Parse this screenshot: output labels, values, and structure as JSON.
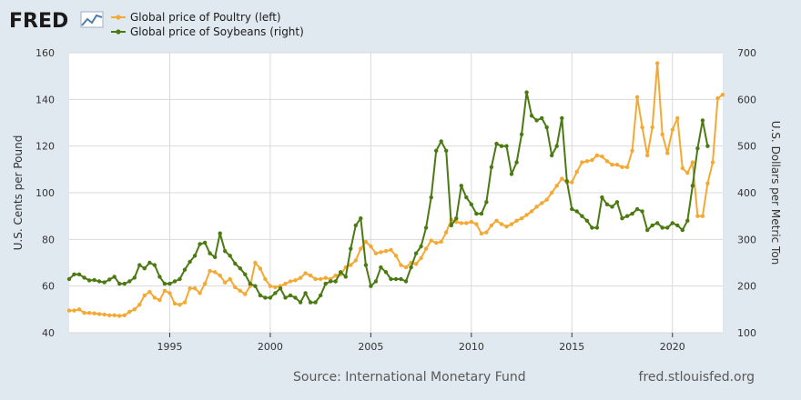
{
  "logo": {
    "text": "FRED"
  },
  "footer": {
    "source": "Source: International Monetary Fund",
    "site": "fred.stlouisfed.org"
  },
  "colors": {
    "background": "#e1e9f0",
    "plot_background": "#ffffff",
    "poultry": "#f4a935",
    "soybeans": "#4b7a12",
    "grid": "#d9d9d9"
  },
  "chart_data": {
    "type": "line",
    "title": "",
    "xlabel": "",
    "ylabel": "U.S. Cents per Pound",
    "ylabel_right": "U.S. Dollars per Metric Ton",
    "xlim": [
      1990.0,
      2021.5
    ],
    "ylim": [
      40,
      160
    ],
    "ylim_right": [
      100,
      700
    ],
    "x_ticks": [
      1995,
      2000,
      2005,
      2010,
      2015,
      2020
    ],
    "y_ticks": [
      40,
      60,
      80,
      100,
      120,
      140,
      160
    ],
    "y_ticks_right": [
      100,
      200,
      300,
      400,
      500,
      600,
      700
    ],
    "grid": true,
    "legend_position": "top",
    "series": [
      {
        "name": "Global price of Poultry (left)",
        "axis": "left",
        "color": "#f4a935",
        "points": [
          [
            1990.0,
            49.5
          ],
          [
            1990.25,
            49.5
          ],
          [
            1990.5,
            50.0
          ],
          [
            1990.75,
            48.5
          ],
          [
            1991.0,
            48.5
          ],
          [
            1991.25,
            48.3
          ],
          [
            1991.5,
            48.0
          ],
          [
            1991.75,
            47.8
          ],
          [
            1992.0,
            47.5
          ],
          [
            1992.25,
            47.5
          ],
          [
            1992.5,
            47.2
          ],
          [
            1992.75,
            47.5
          ],
          [
            1993.0,
            49.0
          ],
          [
            1993.25,
            50.0
          ],
          [
            1993.5,
            52.0
          ],
          [
            1993.75,
            56.0
          ],
          [
            1994.0,
            57.5
          ],
          [
            1994.25,
            55.0
          ],
          [
            1994.5,
            54.0
          ],
          [
            1994.75,
            58.0
          ],
          [
            1995.0,
            57.0
          ],
          [
            1995.25,
            52.5
          ],
          [
            1995.5,
            52.0
          ],
          [
            1995.75,
            53.0
          ],
          [
            1996.0,
            59.0
          ],
          [
            1996.25,
            59.0
          ],
          [
            1996.5,
            57.0
          ],
          [
            1996.75,
            61.0
          ],
          [
            1997.0,
            66.5
          ],
          [
            1997.25,
            66.0
          ],
          [
            1997.5,
            64.5
          ],
          [
            1997.75,
            61.5
          ],
          [
            1998.0,
            63.0
          ],
          [
            1998.25,
            59.5
          ],
          [
            1998.5,
            58.0
          ],
          [
            1998.75,
            56.5
          ],
          [
            1999.0,
            60.0
          ],
          [
            1999.25,
            70.0
          ],
          [
            1999.5,
            67.5
          ],
          [
            1999.75,
            63.0
          ],
          [
            2000.0,
            60.0
          ],
          [
            2000.25,
            59.5
          ],
          [
            2000.5,
            60.0
          ],
          [
            2000.75,
            61.0
          ],
          [
            2001.0,
            62.0
          ],
          [
            2001.25,
            62.5
          ],
          [
            2001.5,
            63.5
          ],
          [
            2001.75,
            65.5
          ],
          [
            2002.0,
            64.5
          ],
          [
            2002.25,
            63.0
          ],
          [
            2002.5,
            63.0
          ],
          [
            2002.75,
            63.5
          ],
          [
            2003.0,
            63.0
          ],
          [
            2003.25,
            64.5
          ],
          [
            2003.5,
            65.0
          ],
          [
            2003.75,
            68.0
          ],
          [
            2004.0,
            69.0
          ],
          [
            2004.25,
            71.0
          ],
          [
            2004.5,
            76.0
          ],
          [
            2004.75,
            79.0
          ],
          [
            2005.0,
            77.0
          ],
          [
            2005.25,
            74.0
          ],
          [
            2005.5,
            74.5
          ],
          [
            2005.75,
            75.0
          ],
          [
            2006.0,
            75.5
          ],
          [
            2006.25,
            73.0
          ],
          [
            2006.5,
            69.0
          ],
          [
            2006.75,
            68.0
          ],
          [
            2007.0,
            70.0
          ],
          [
            2007.25,
            69.5
          ],
          [
            2007.5,
            72.0
          ],
          [
            2007.75,
            76.0
          ],
          [
            2008.0,
            79.5
          ],
          [
            2008.25,
            78.5
          ],
          [
            2008.5,
            79.0
          ],
          [
            2008.75,
            83.0
          ],
          [
            2009.0,
            88.5
          ],
          [
            2009.25,
            87.5
          ],
          [
            2009.5,
            87.0
          ],
          [
            2009.75,
            87.0
          ],
          [
            2010.0,
            87.5
          ],
          [
            2010.25,
            86.5
          ],
          [
            2010.5,
            82.5
          ],
          [
            2010.75,
            83.0
          ],
          [
            2011.0,
            86.0
          ],
          [
            2011.25,
            88.0
          ],
          [
            2011.5,
            86.5
          ],
          [
            2011.75,
            85.5
          ],
          [
            2012.0,
            86.5
          ],
          [
            2012.25,
            88.0
          ],
          [
            2012.5,
            89.0
          ],
          [
            2012.75,
            90.5
          ],
          [
            2013.0,
            92.0
          ],
          [
            2013.25,
            94.0
          ],
          [
            2013.5,
            95.5
          ],
          [
            2013.75,
            97.0
          ],
          [
            2014.0,
            100.0
          ],
          [
            2014.25,
            103.0
          ],
          [
            2014.5,
            106.0
          ],
          [
            2014.75,
            104.5
          ],
          [
            2015.0,
            104.5
          ],
          [
            2015.25,
            109.0
          ],
          [
            2015.5,
            113.0
          ],
          [
            2015.75,
            113.5
          ],
          [
            2016.0,
            114.0
          ],
          [
            2016.25,
            116.0
          ],
          [
            2016.5,
            115.5
          ],
          [
            2016.75,
            113.5
          ],
          [
            2017.0,
            112.0
          ],
          [
            2017.25,
            112.0
          ],
          [
            2017.5,
            111.0
          ],
          [
            2017.75,
            111.0
          ],
          [
            2018.0,
            118.0
          ],
          [
            2018.25,
            141.0
          ],
          [
            2018.5,
            128.0
          ],
          [
            2018.75,
            116.0
          ],
          [
            2019.0,
            128.0
          ],
          [
            2019.25,
            155.5
          ],
          [
            2019.5,
            125.0
          ],
          [
            2019.75,
            117.0
          ],
          [
            2020.0,
            127.0
          ],
          [
            2020.25,
            132.0
          ],
          [
            2020.5,
            110.5
          ],
          [
            2020.75,
            108.5
          ],
          [
            2021.0,
            113.0
          ],
          [
            2021.25,
            90.0
          ],
          [
            2021.5,
            90.0
          ],
          [
            2021.75,
            104.0
          ],
          [
            2022.0,
            113.0
          ],
          [
            2022.25,
            140.5
          ],
          [
            2022.5,
            142.0
          ]
        ]
      },
      {
        "name": "Global price of Soybeans (right)",
        "axis": "right",
        "color": "#4b7a12",
        "points": [
          [
            1990.0,
            215
          ],
          [
            1990.25,
            225
          ],
          [
            1990.5,
            225
          ],
          [
            1990.75,
            218
          ],
          [
            1991.0,
            212
          ],
          [
            1991.25,
            213
          ],
          [
            1991.5,
            210
          ],
          [
            1991.75,
            208
          ],
          [
            1992.0,
            214
          ],
          [
            1992.25,
            220
          ],
          [
            1992.5,
            205
          ],
          [
            1992.75,
            205
          ],
          [
            1993.0,
            210
          ],
          [
            1993.25,
            218
          ],
          [
            1993.5,
            245
          ],
          [
            1993.75,
            238
          ],
          [
            1994.0,
            250
          ],
          [
            1994.25,
            245
          ],
          [
            1994.5,
            220
          ],
          [
            1994.75,
            205
          ],
          [
            1995.0,
            205
          ],
          [
            1995.25,
            210
          ],
          [
            1995.5,
            215
          ],
          [
            1995.75,
            235
          ],
          [
            1996.0,
            252
          ],
          [
            1996.25,
            265
          ],
          [
            1996.5,
            290
          ],
          [
            1996.75,
            293
          ],
          [
            1997.0,
            270
          ],
          [
            1997.25,
            262
          ],
          [
            1997.5,
            313
          ],
          [
            1997.75,
            275
          ],
          [
            1998.0,
            265
          ],
          [
            1998.25,
            248
          ],
          [
            1998.5,
            238
          ],
          [
            1998.75,
            225
          ],
          [
            1999.0,
            205
          ],
          [
            1999.25,
            200
          ],
          [
            1999.5,
            180
          ],
          [
            1999.75,
            175
          ],
          [
            2000.0,
            175
          ],
          [
            2000.25,
            185
          ],
          [
            2000.5,
            195
          ],
          [
            2000.75,
            175
          ],
          [
            2001.0,
            180
          ],
          [
            2001.25,
            175
          ],
          [
            2001.5,
            165
          ],
          [
            2001.75,
            185
          ],
          [
            2002.0,
            165
          ],
          [
            2002.25,
            165
          ],
          [
            2002.5,
            180
          ],
          [
            2002.75,
            205
          ],
          [
            2003.0,
            210
          ],
          [
            2003.25,
            210
          ],
          [
            2003.5,
            230
          ],
          [
            2003.75,
            220
          ],
          [
            2004.0,
            280
          ],
          [
            2004.25,
            330
          ],
          [
            2004.5,
            345
          ],
          [
            2004.75,
            245
          ],
          [
            2005.0,
            200
          ],
          [
            2005.25,
            210
          ],
          [
            2005.5,
            240
          ],
          [
            2005.75,
            230
          ],
          [
            2006.0,
            215
          ],
          [
            2006.25,
            215
          ],
          [
            2006.5,
            215
          ],
          [
            2006.75,
            210
          ],
          [
            2007.0,
            240
          ],
          [
            2007.25,
            270
          ],
          [
            2007.5,
            285
          ],
          [
            2007.75,
            325
          ],
          [
            2008.0,
            390
          ],
          [
            2008.25,
            490
          ],
          [
            2008.5,
            510
          ],
          [
            2008.75,
            490
          ],
          [
            2009.0,
            330
          ],
          [
            2009.25,
            345
          ],
          [
            2009.5,
            415
          ],
          [
            2009.75,
            390
          ],
          [
            2010.0,
            375
          ],
          [
            2010.25,
            355
          ],
          [
            2010.5,
            355
          ],
          [
            2010.75,
            380
          ],
          [
            2011.0,
            455
          ],
          [
            2011.25,
            505
          ],
          [
            2011.5,
            500
          ],
          [
            2011.75,
            500
          ],
          [
            2012.0,
            440
          ],
          [
            2012.25,
            465
          ],
          [
            2012.5,
            525
          ],
          [
            2012.75,
            615
          ],
          [
            2013.0,
            565
          ],
          [
            2013.25,
            555
          ],
          [
            2013.5,
            560
          ],
          [
            2013.75,
            540
          ],
          [
            2014.0,
            480
          ],
          [
            2014.25,
            500
          ],
          [
            2014.5,
            560
          ],
          [
            2014.75,
            425
          ],
          [
            2015.0,
            365
          ],
          [
            2015.25,
            360
          ],
          [
            2015.5,
            350
          ],
          [
            2015.75,
            340
          ],
          [
            2016.0,
            325
          ],
          [
            2016.25,
            325
          ],
          [
            2016.5,
            390
          ],
          [
            2016.75,
            375
          ],
          [
            2017.0,
            370
          ],
          [
            2017.25,
            380
          ],
          [
            2017.5,
            345
          ],
          [
            2017.75,
            350
          ],
          [
            2018.0,
            355
          ],
          [
            2018.25,
            365
          ],
          [
            2018.5,
            360
          ],
          [
            2018.75,
            320
          ],
          [
            2019.0,
            330
          ],
          [
            2019.25,
            335
          ],
          [
            2019.5,
            325
          ],
          [
            2019.75,
            325
          ],
          [
            2020.0,
            335
          ],
          [
            2020.25,
            330
          ],
          [
            2020.5,
            320
          ],
          [
            2020.75,
            340
          ],
          [
            2021.0,
            415
          ],
          [
            2021.25,
            495
          ],
          [
            2021.5,
            555
          ],
          [
            2021.75,
            500
          ]
        ]
      }
    ]
  }
}
